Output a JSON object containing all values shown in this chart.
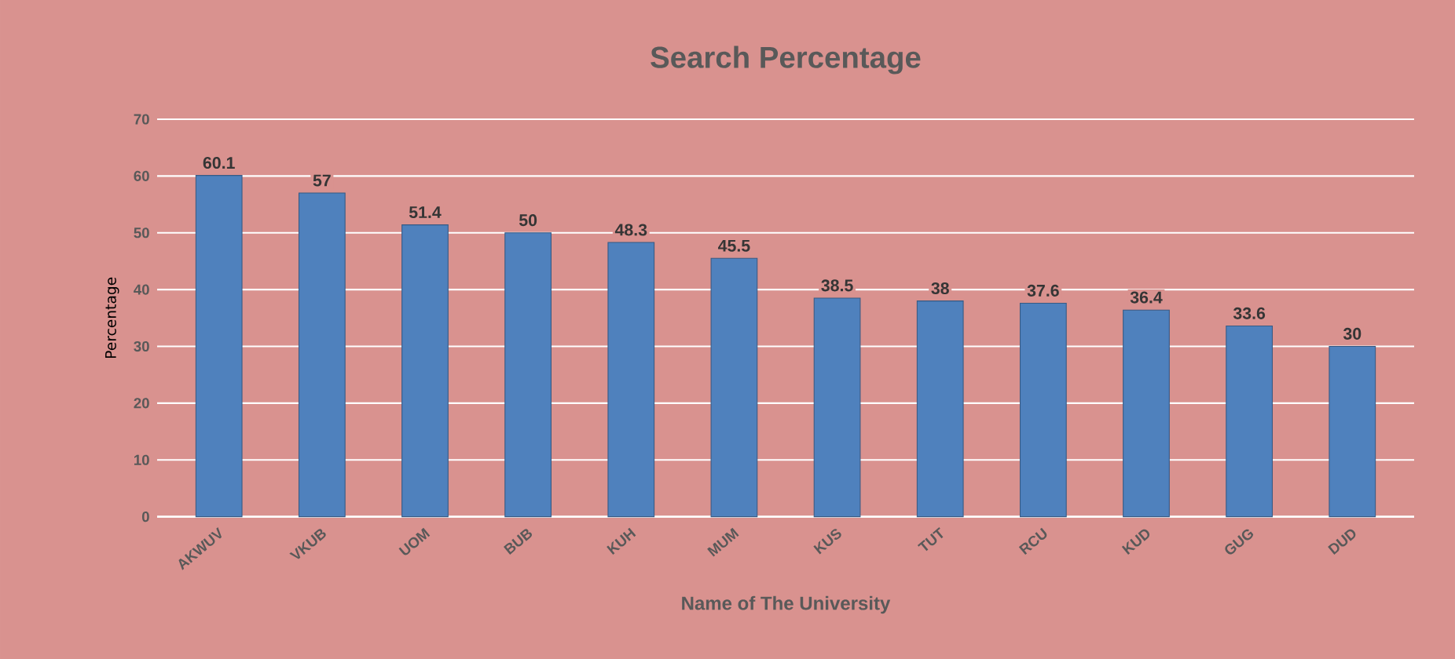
{
  "chart_data": {
    "type": "bar",
    "title": "Search Percentage",
    "xlabel": "Name of The University",
    "ylabel": "Percentage",
    "categories": [
      "AKWUV",
      "VKUB",
      "UOM",
      "BUB",
      "KUH",
      "MUM",
      "KUS",
      "TUT",
      "RCU",
      "KUD",
      "GUG",
      "DUD"
    ],
    "values": [
      60.1,
      57,
      51.4,
      50,
      48.3,
      45.5,
      38.5,
      38,
      37.6,
      36.4,
      33.6,
      30
    ],
    "color": "#4f81bd",
    "ylim": [
      0,
      70
    ],
    "yticks": [
      0,
      10,
      20,
      30,
      40,
      50,
      60,
      70
    ],
    "grid": "y",
    "data_labels": true
  }
}
